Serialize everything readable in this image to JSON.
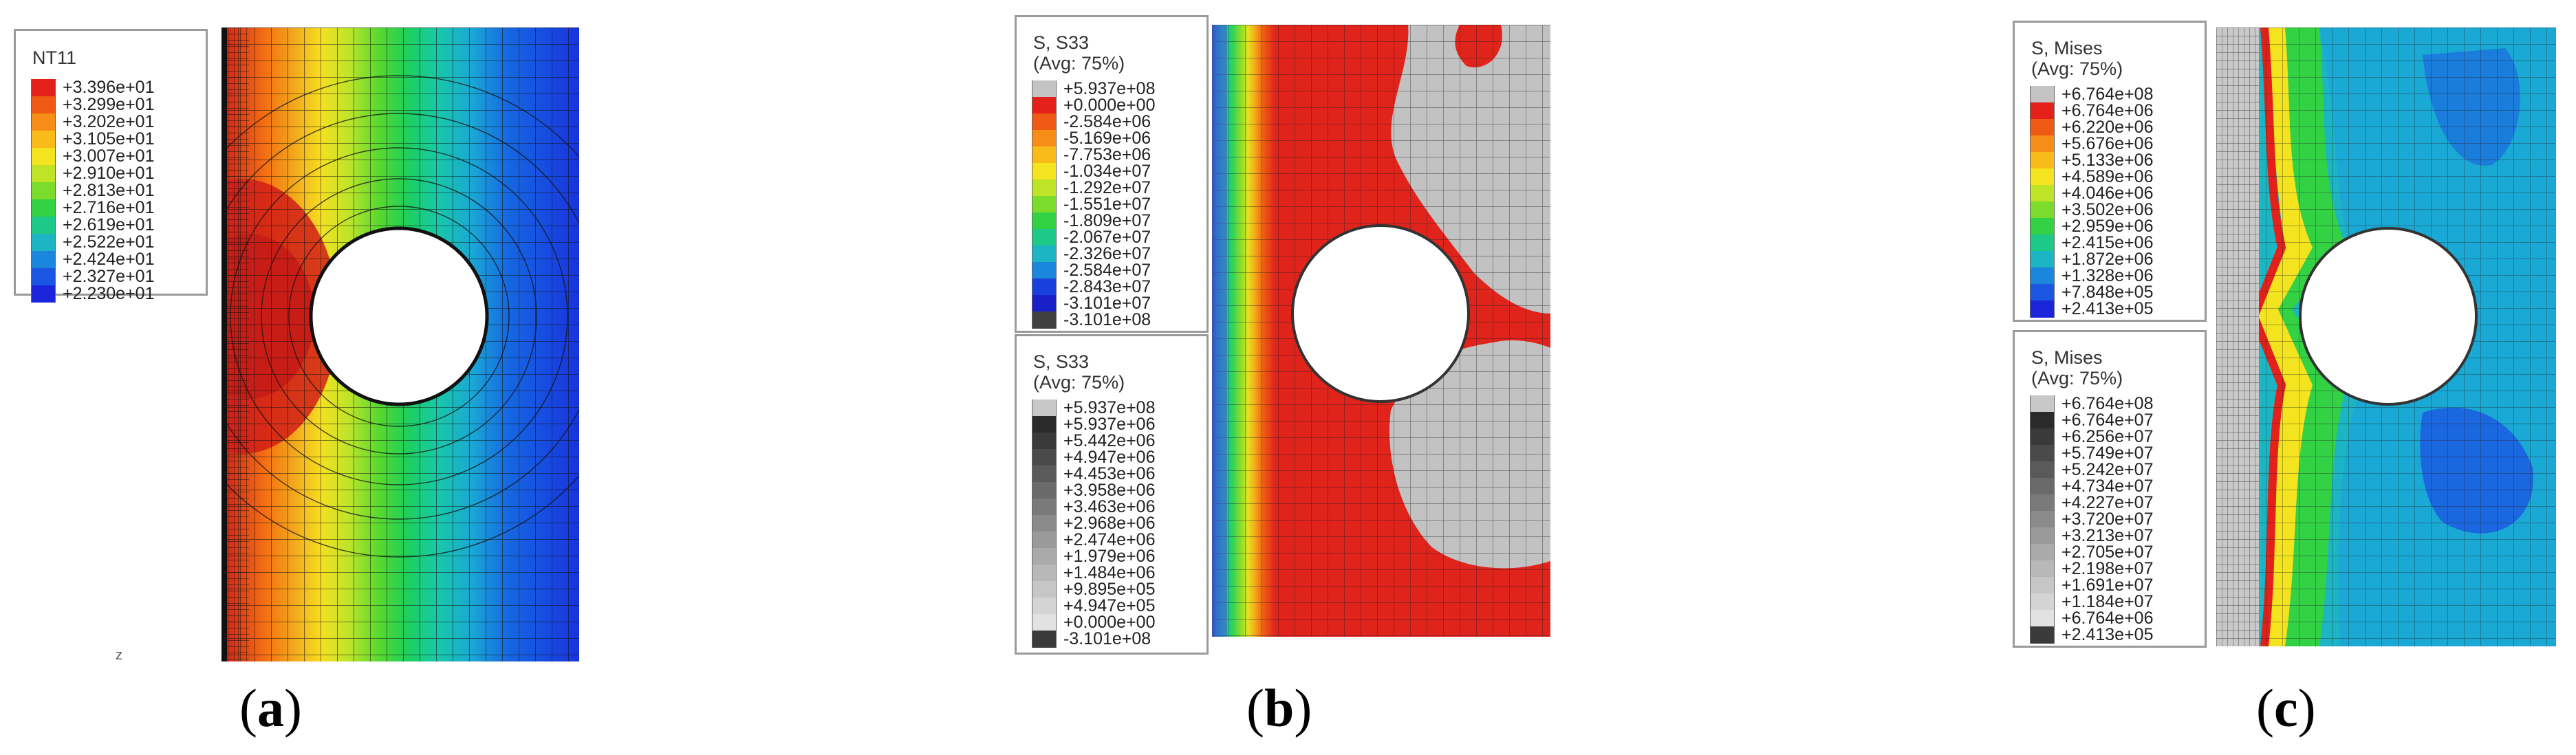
{
  "panels": [
    {
      "id": "a",
      "label_open": "(",
      "label_letter": "a",
      "label_close": ")",
      "field_colors": [
        "#d11f18",
        "#f36e12",
        "#f2a61b",
        "#f5e021",
        "#b9e52b",
        "#58d92e",
        "#1ecf5c",
        "#18c9a7",
        "#1aa8d4",
        "#1668e2",
        "#1833de"
      ],
      "legends": [
        {
          "title_lines": [
            "NT11"
          ],
          "entries": [
            {
              "value": "+3.396e+01",
              "color": "#e3211a"
            },
            {
              "value": "+3.299e+01",
              "color": "#ee5a13"
            },
            {
              "value": "+3.202e+01",
              "color": "#f68d16"
            },
            {
              "value": "+3.105e+01",
              "color": "#f8bb1a"
            },
            {
              "value": "+3.007e+01",
              "color": "#f4e41f"
            },
            {
              "value": "+2.910e+01",
              "color": "#bfe326"
            },
            {
              "value": "+2.813e+01",
              "color": "#7bdc2c"
            },
            {
              "value": "+2.716e+01",
              "color": "#33d144"
            },
            {
              "value": "+2.619e+01",
              "color": "#1dc987"
            },
            {
              "value": "+2.522e+01",
              "color": "#1bb5c4"
            },
            {
              "value": "+2.424e+01",
              "color": "#1a86dc"
            },
            {
              "value": "+2.327e+01",
              "color": "#1a56e1"
            },
            {
              "value": "+2.230e+01",
              "color": "#1a24d8"
            }
          ]
        }
      ]
    },
    {
      "id": "b",
      "label_open": "(",
      "label_letter": "b",
      "label_close": ")",
      "field_colors": [
        "#2a3cc9",
        "#1a8ede",
        "#1cc5b1",
        "#2fd15a",
        "#8ade2a",
        "#e3e222",
        "#f6a51a",
        "#ee5a13",
        "#e0231b"
      ],
      "legends": [
        {
          "title_lines": [
            "S, S33",
            "(Avg: 75%)"
          ],
          "entries": [
            {
              "value": "+5.937e+08",
              "color": "#c4c4c4"
            },
            {
              "value": "+0.000e+00",
              "color": "#e3211a"
            },
            {
              "value": "-2.584e+06",
              "color": "#ee5a13"
            },
            {
              "value": "-5.169e+06",
              "color": "#f68d16"
            },
            {
              "value": "-7.753e+06",
              "color": "#f8bb1a"
            },
            {
              "value": "-1.034e+07",
              "color": "#f4e41f"
            },
            {
              "value": "-1.292e+07",
              "color": "#bfe326"
            },
            {
              "value": "-1.551e+07",
              "color": "#7bdc2c"
            },
            {
              "value": "-1.809e+07",
              "color": "#33d144"
            },
            {
              "value": "-2.067e+07",
              "color": "#1dc987"
            },
            {
              "value": "-2.326e+07",
              "color": "#1bb5c4"
            },
            {
              "value": "-2.584e+07",
              "color": "#1a86dc"
            },
            {
              "value": "-2.843e+07",
              "color": "#1a40dc"
            },
            {
              "value": "-3.101e+07",
              "color": "#1a20c8"
            },
            {
              "value": "-3.101e+08",
              "color": "#404040"
            }
          ]
        },
        {
          "title_lines": [
            "S, S33",
            "(Avg: 75%)"
          ],
          "entries": [
            {
              "value": "+5.937e+08",
              "color": "#c8c8c8"
            },
            {
              "value": "+5.937e+06",
              "color": "#2a2a2a"
            },
            {
              "value": "+5.442e+06",
              "color": "#3a3a3a"
            },
            {
              "value": "+4.947e+06",
              "color": "#4a4a4a"
            },
            {
              "value": "+4.453e+06",
              "color": "#5a5a5a"
            },
            {
              "value": "+3.958e+06",
              "color": "#6a6a6a"
            },
            {
              "value": "+3.463e+06",
              "color": "#7a7a7a"
            },
            {
              "value": "+2.968e+06",
              "color": "#8a8a8a"
            },
            {
              "value": "+2.474e+06",
              "color": "#9a9a9a"
            },
            {
              "value": "+1.979e+06",
              "color": "#aaaaaa"
            },
            {
              "value": "+1.484e+06",
              "color": "#b8b8b8"
            },
            {
              "value": "+9.895e+05",
              "color": "#c6c6c6"
            },
            {
              "value": "+4.947e+05",
              "color": "#d4d4d4"
            },
            {
              "value": "+0.000e+00",
              "color": "#e2e2e2"
            },
            {
              "value": "-3.101e+08",
              "color": "#3a3a3a"
            }
          ]
        }
      ]
    },
    {
      "id": "c",
      "label_open": "(",
      "label_letter": "c",
      "label_close": ")",
      "field_colors": [
        "#1a40dc",
        "#1a86dc",
        "#1bb5c4",
        "#1dc987",
        "#33d144",
        "#bfe326",
        "#f4e41f",
        "#f68d16",
        "#e3211a"
      ],
      "legends": [
        {
          "title_lines": [
            "S, Mises",
            "(Avg: 75%)"
          ],
          "entries": [
            {
              "value": "+6.764e+08",
              "color": "#c4c4c4"
            },
            {
              "value": "+6.764e+06",
              "color": "#e3211a"
            },
            {
              "value": "+6.220e+06",
              "color": "#ee5a13"
            },
            {
              "value": "+5.676e+06",
              "color": "#f68d16"
            },
            {
              "value": "+5.133e+06",
              "color": "#f8bb1a"
            },
            {
              "value": "+4.589e+06",
              "color": "#f4e41f"
            },
            {
              "value": "+4.046e+06",
              "color": "#bfe326"
            },
            {
              "value": "+3.502e+06",
              "color": "#7bdc2c"
            },
            {
              "value": "+2.959e+06",
              "color": "#33d144"
            },
            {
              "value": "+2.415e+06",
              "color": "#1dc987"
            },
            {
              "value": "+1.872e+06",
              "color": "#1bb5c4"
            },
            {
              "value": "+1.328e+06",
              "color": "#1a86dc"
            },
            {
              "value": "+7.848e+05",
              "color": "#1a56e1"
            },
            {
              "value": "+2.413e+05",
              "color": "#1a24d8"
            }
          ]
        },
        {
          "title_lines": [
            "S, Mises",
            "(Avg: 75%)"
          ],
          "entries": [
            {
              "value": "+6.764e+08",
              "color": "#c8c8c8"
            },
            {
              "value": "+6.764e+07",
              "color": "#2a2a2a"
            },
            {
              "value": "+6.256e+07",
              "color": "#3a3a3a"
            },
            {
              "value": "+5.749e+07",
              "color": "#4a4a4a"
            },
            {
              "value": "+5.242e+07",
              "color": "#5a5a5a"
            },
            {
              "value": "+4.734e+07",
              "color": "#6a6a6a"
            },
            {
              "value": "+4.227e+07",
              "color": "#7a7a7a"
            },
            {
              "value": "+3.720e+07",
              "color": "#8a8a8a"
            },
            {
              "value": "+3.213e+07",
              "color": "#9a9a9a"
            },
            {
              "value": "+2.705e+07",
              "color": "#aaaaaa"
            },
            {
              "value": "+2.198e+07",
              "color": "#b8b8b8"
            },
            {
              "value": "+1.691e+07",
              "color": "#c6c6c6"
            },
            {
              "value": "+1.184e+07",
              "color": "#d4d4d4"
            },
            {
              "value": "+6.764e+06",
              "color": "#e2e2e2"
            },
            {
              "value": "+2.413e+05",
              "color": "#3a3a3a"
            }
          ]
        }
      ]
    }
  ]
}
